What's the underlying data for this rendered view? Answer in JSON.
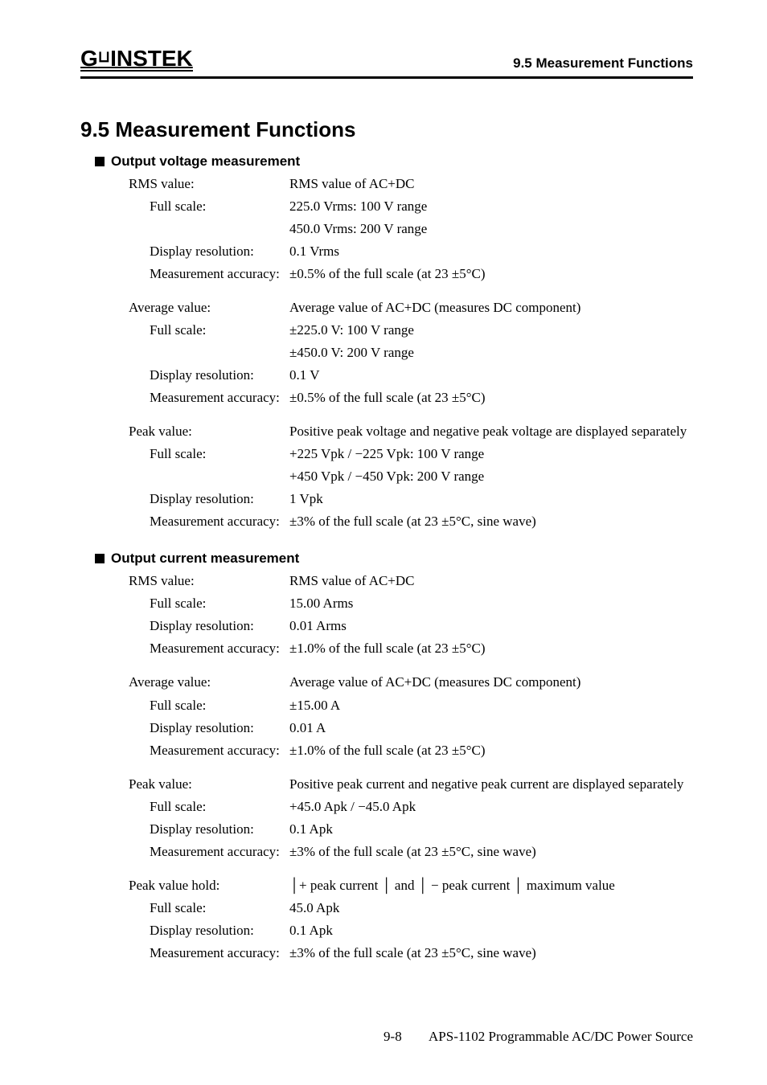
{
  "header": {
    "logo_g": "G",
    "logo_u": "ᶜ",
    "logo_rest": "INSTEK",
    "right": "9.5 Measurement Functions"
  },
  "section_title": "9.5    Measurement Functions",
  "voltage": {
    "heading": "Output voltage measurement",
    "rms": {
      "label": "RMS value:",
      "desc": "RMS value of AC+DC",
      "full_scale_label": "Full scale:",
      "full_scale_1": "225.0 Vrms:  100 V range",
      "full_scale_2": "450.0 Vrms:  200 V range",
      "disp_res_label": "Display resolution:",
      "disp_res": "0.1 Vrms",
      "acc_label": "Measurement accuracy:",
      "acc": "±0.5% of the full scale (at 23 ±5°C)"
    },
    "avg": {
      "label": "Average value:",
      "desc": "Average value of AC+DC (measures DC component)",
      "full_scale_label": "Full scale:",
      "full_scale_1": "±225.0 V:  100 V range",
      "full_scale_2": "±450.0 V:  200 V range",
      "disp_res_label": "Display resolution:",
      "disp_res": "0.1 V",
      "acc_label": "Measurement accuracy:",
      "acc": "±0.5% of the full scale (at 23 ±5°C)"
    },
    "peak": {
      "label": "Peak value:",
      "desc": "Positive peak voltage and negative peak voltage are displayed separately",
      "full_scale_label": "Full scale:",
      "full_scale_1": "+225 Vpk / −225 Vpk:  100 V range",
      "full_scale_2": "+450 Vpk / −450 Vpk:  200 V range",
      "disp_res_label": "Display resolution:",
      "disp_res": "1 Vpk",
      "acc_label": "Measurement accuracy:",
      "acc": "±3% of the full scale (at 23 ±5°C, sine wave)"
    }
  },
  "current": {
    "heading": "Output current measurement",
    "rms": {
      "label": "RMS value:",
      "desc": "RMS value of AC+DC",
      "full_scale_label": "Full scale:",
      "full_scale": "15.00 Arms",
      "disp_res_label": "Display resolution:",
      "disp_res": "0.01 Arms",
      "acc_label": "Measurement accuracy:",
      "acc": "±1.0% of the full scale (at 23 ±5°C)"
    },
    "avg": {
      "label": "Average value:",
      "desc": "Average value of AC+DC (measures DC component)",
      "full_scale_label": "Full scale:",
      "full_scale": "±15.00 A",
      "disp_res_label": "Display resolution:",
      "disp_res": "0.01 A",
      "acc_label": "Measurement accuracy:",
      "acc": "±1.0% of the full scale (at 23 ±5°C)"
    },
    "peak": {
      "label": "Peak value:",
      "desc": "Positive peak current and negative peak current are displayed separately",
      "full_scale_label": "Full scale:",
      "full_scale": "+45.0 Apk / −45.0 Apk",
      "disp_res_label": "Display resolution:",
      "disp_res": "0.1 Apk",
      "acc_label": "Measurement accuracy:",
      "acc": "±3% of the full scale (at 23 ±5°C, sine wave)"
    },
    "peak_hold": {
      "label": "Peak value hold:",
      "desc": "│+ peak current │ and │ − peak current │ maximum value",
      "full_scale_label": "Full scale:",
      "full_scale": "45.0 Apk",
      "disp_res_label": "Display resolution:",
      "disp_res": "0.1 Apk",
      "acc_label": "Measurement accuracy:",
      "acc": "±3% of the full scale (at 23 ±5°C, sine wave)"
    }
  },
  "footer": {
    "page": "9-8",
    "doc": "APS-1102 Programmable AC/DC Power Source"
  }
}
